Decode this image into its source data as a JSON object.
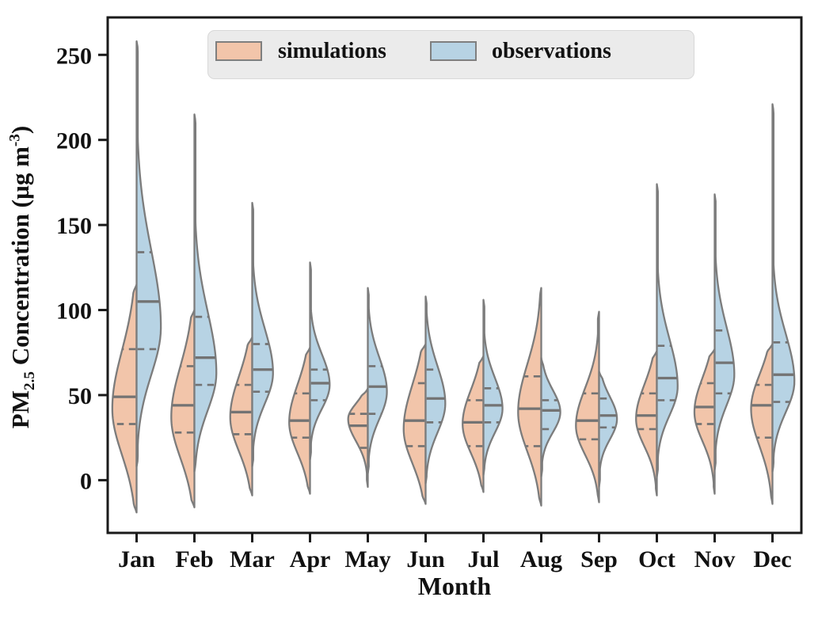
{
  "chart_data": {
    "type": "violin",
    "variant": "split-violin",
    "xlabel": "Month",
    "ylabel": "PM2.5 Concentration (µg m-3)",
    "ylabel_parts": {
      "prefix": "PM",
      "sub": "2.5",
      "mid": " Concentration (µg m",
      "sup": "-3",
      "suffix": ")"
    },
    "categories": [
      "Jan",
      "Feb",
      "Mar",
      "Apr",
      "May",
      "Jun",
      "Jul",
      "Aug",
      "Sep",
      "Oct",
      "Nov",
      "Dec"
    ],
    "yticks": [
      0,
      50,
      100,
      150,
      200,
      250
    ],
    "ylim": [
      -31,
      272
    ],
    "grid": false,
    "legend_position": "upper center",
    "legend": [
      {
        "label": "simulations",
        "color": "#f2c5aa"
      },
      {
        "label": "observations",
        "color": "#b7d3e4"
      }
    ],
    "series": [
      {
        "name": "simulations",
        "side": "left",
        "color": "#f2c5aa",
        "stats": [
          {
            "month": "Jan",
            "min": -19,
            "q1": 33,
            "median": 49,
            "q3": 77,
            "max": 115,
            "mode": 42,
            "sd": [
              27,
              34
            ],
            "w": 0.42
          },
          {
            "month": "Feb",
            "min": -16,
            "q1": 28,
            "median": 44,
            "q3": 67,
            "max": 100,
            "mode": 37,
            "sd": [
              24,
              30
            ],
            "w": 0.4
          },
          {
            "month": "Mar",
            "min": -9,
            "q1": 27,
            "median": 40,
            "q3": 56,
            "max": 84,
            "mode": 37,
            "sd": [
              20,
              24
            ],
            "w": 0.38
          },
          {
            "month": "Apr",
            "min": -8,
            "q1": 25,
            "median": 35,
            "q3": 51,
            "max": 78,
            "mode": 34,
            "sd": [
              18,
              22
            ],
            "w": 0.36
          },
          {
            "month": "May",
            "min": -4,
            "q1": 19,
            "median": 32,
            "q3": 39,
            "max": 54,
            "mode": 36,
            "sd": [
              13,
              9
            ],
            "w": 0.34
          },
          {
            "month": "Jun",
            "min": -14,
            "q1": 20,
            "median": 35,
            "q3": 57,
            "max": 80,
            "mode": 30,
            "sd": [
              20,
              26
            ],
            "w": 0.38
          },
          {
            "month": "Jul",
            "min": -7,
            "q1": 20,
            "median": 34,
            "q3": 47,
            "max": 73,
            "mode": 33,
            "sd": [
              17,
              20
            ],
            "w": 0.36
          },
          {
            "month": "Aug",
            "min": -15,
            "q1": 20,
            "median": 42,
            "q3": 61,
            "max": 113,
            "mode": 40,
            "sd": [
              23,
              28
            ],
            "w": 0.4
          },
          {
            "month": "Sep",
            "min": -13,
            "q1": 24,
            "median": 35,
            "q3": 51,
            "max": 99,
            "mode": 32,
            "sd": [
              17,
              22
            ],
            "w": 0.4
          },
          {
            "month": "Oct",
            "min": -9,
            "q1": 30,
            "median": 38,
            "q3": 51,
            "max": 76,
            "mode": 36,
            "sd": [
              16,
              20
            ],
            "w": 0.36
          },
          {
            "month": "Nov",
            "min": -8,
            "q1": 33,
            "median": 43,
            "q3": 57,
            "max": 77,
            "mode": 40,
            "sd": [
              17,
              20
            ],
            "w": 0.35
          },
          {
            "month": "Dec",
            "min": -14,
            "q1": 25,
            "median": 44,
            "q3": 56,
            "max": 80,
            "mode": 42,
            "sd": [
              22,
              20
            ],
            "w": 0.37
          }
        ]
      },
      {
        "name": "observations",
        "side": "right",
        "color": "#b7d3e4",
        "stats": [
          {
            "month": "Jan",
            "min": 8,
            "q1": 77,
            "median": 105,
            "q3": 134,
            "max": 258,
            "mode": 90,
            "sd": [
              28,
              45
            ],
            "w": 0.42
          },
          {
            "month": "Feb",
            "min": 5,
            "q1": 56,
            "median": 72,
            "q3": 96,
            "max": 215,
            "mode": 63,
            "sd": [
              22,
              36
            ],
            "w": 0.38
          },
          {
            "month": "Mar",
            "min": 8,
            "q1": 52,
            "median": 65,
            "q3": 80,
            "max": 163,
            "mode": 63,
            "sd": [
              18,
              26
            ],
            "w": 0.36
          },
          {
            "month": "Apr",
            "min": 12,
            "q1": 47,
            "median": 57,
            "q3": 65,
            "max": 128,
            "mode": 56,
            "sd": [
              14,
              18
            ],
            "w": 0.34
          },
          {
            "month": "May",
            "min": 4,
            "q1": 39,
            "median": 55,
            "q3": 67,
            "max": 113,
            "mode": 52,
            "sd": [
              16,
              20
            ],
            "w": 0.33
          },
          {
            "month": "Jun",
            "min": -2,
            "q1": 34,
            "median": 48,
            "q3": 65,
            "max": 108,
            "mode": 45,
            "sd": [
              17,
              22
            ],
            "w": 0.34
          },
          {
            "month": "Jul",
            "min": 3,
            "q1": 34,
            "median": 44,
            "q3": 54,
            "max": 106,
            "mode": 42,
            "sd": [
              14,
              18
            ],
            "w": 0.33
          },
          {
            "month": "Aug",
            "min": 2,
            "q1": 30,
            "median": 41,
            "q3": 47,
            "max": 72,
            "mode": 40,
            "sd": [
              12,
              13
            ],
            "w": 0.33
          },
          {
            "month": "Sep",
            "min": -4,
            "q1": 31,
            "median": 38,
            "q3": 48,
            "max": 64,
            "mode": 36,
            "sd": [
              12,
              13
            ],
            "w": 0.31
          },
          {
            "month": "Oct",
            "min": 2,
            "q1": 47,
            "median": 60,
            "q3": 79,
            "max": 174,
            "mode": 55,
            "sd": [
              17,
              28
            ],
            "w": 0.36
          },
          {
            "month": "Nov",
            "min": 6,
            "q1": 51,
            "median": 69,
            "q3": 88,
            "max": 168,
            "mode": 62,
            "sd": [
              18,
              28
            ],
            "w": 0.34
          },
          {
            "month": "Dec",
            "min": 5,
            "q1": 46,
            "median": 62,
            "q3": 81,
            "max": 221,
            "mode": 58,
            "sd": [
              18,
              28
            ],
            "w": 0.38
          }
        ]
      }
    ]
  },
  "colors": {
    "violin_outline": "#7c7c7c",
    "quartile_line": "#737373",
    "axis": "#1a1a1a",
    "text": "#111111",
    "legend_bg": "#ebebeb",
    "background": "#ffffff"
  }
}
